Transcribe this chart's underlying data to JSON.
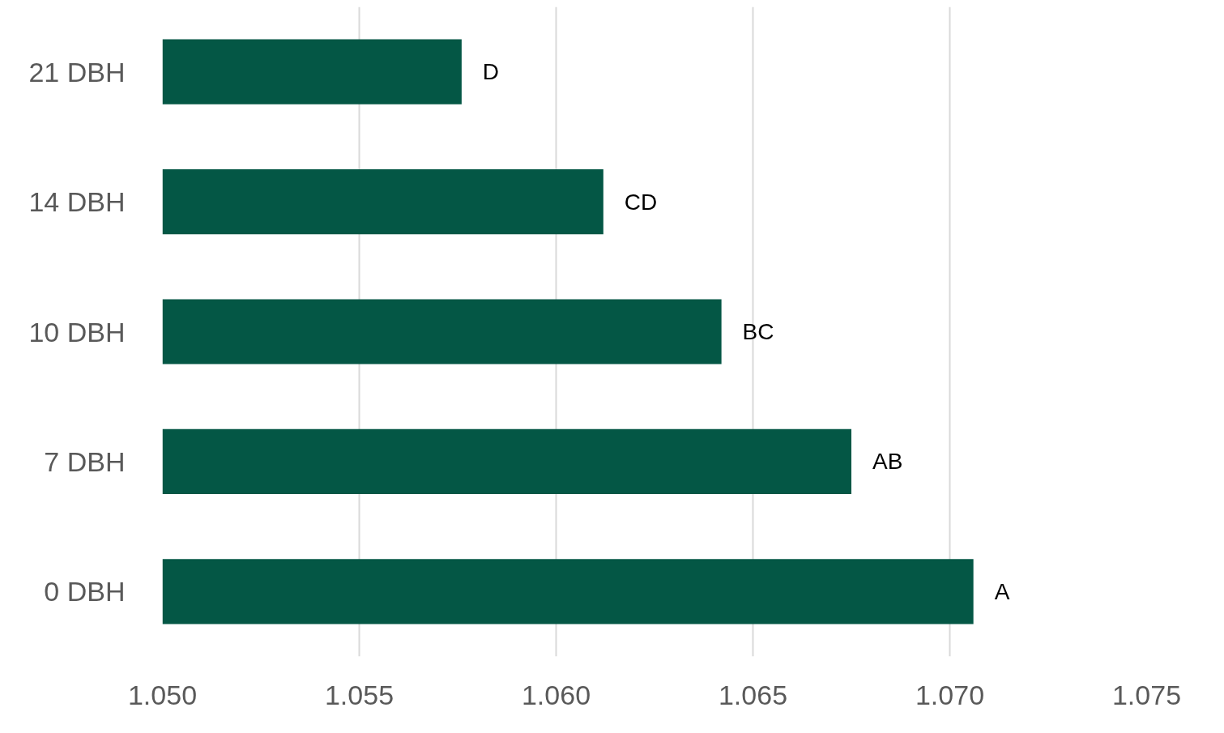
{
  "chart_data": {
    "type": "bar",
    "orientation": "horizontal",
    "categories": [
      "21 DBH",
      "14 DBH",
      "10 DBH",
      "7 DBH",
      "0 DBH"
    ],
    "series": [
      {
        "color": "#045745",
        "values": [
          1.0576,
          1.0612,
          1.0642,
          1.0675,
          1.0706
        ]
      }
    ],
    "value_labels": [
      "D",
      "CD",
      "BC",
      "AB",
      "A"
    ],
    "xlim": [
      1.05,
      1.075
    ],
    "xticks": [
      {
        "value": 1.05,
        "label": "1.050"
      },
      {
        "value": 1.055,
        "label": "1.055"
      },
      {
        "value": 1.06,
        "label": "1.060"
      },
      {
        "value": 1.065,
        "label": "1.065"
      },
      {
        "value": 1.07,
        "label": "1.070"
      },
      {
        "value": 1.075,
        "label": "1.075"
      }
    ],
    "grid": "x"
  }
}
